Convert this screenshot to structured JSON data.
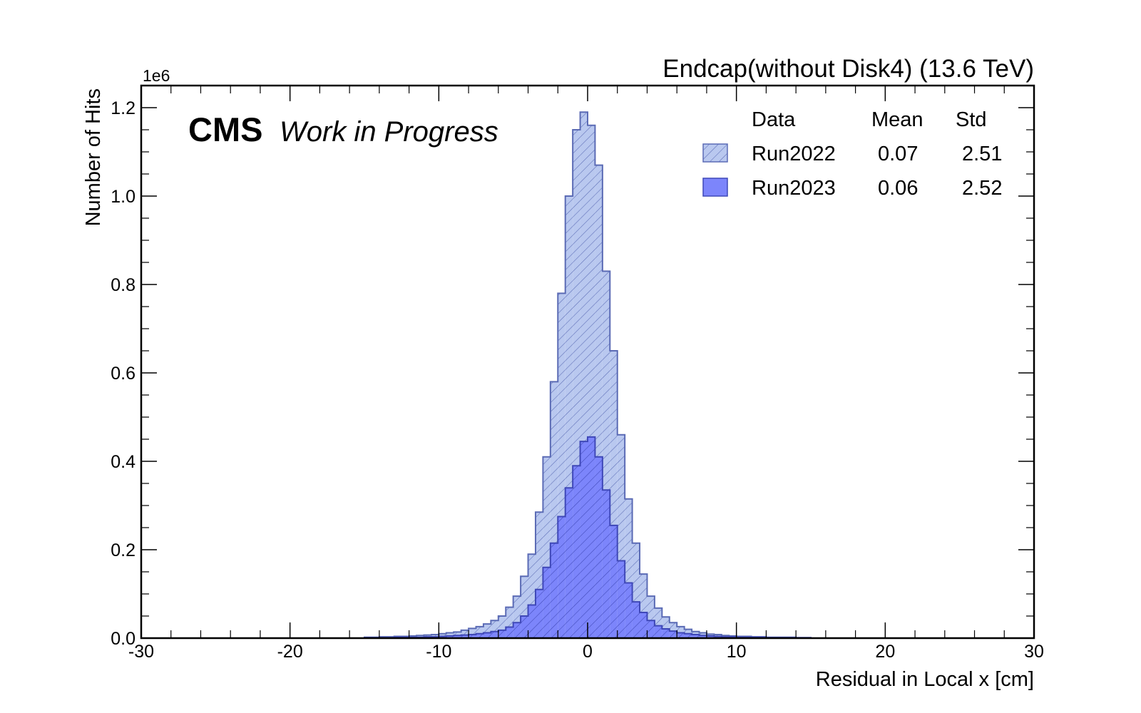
{
  "chart_data": {
    "type": "bar",
    "title": "Endcap(without Disk4) (13.6 TeV)",
    "experiment_label": "CMS",
    "experiment_extra": "Work in Progress",
    "xlabel": "Residual in Local x [cm]",
    "ylabel": "Number of Hits",
    "y_scale_label": "1e6",
    "xlim": [
      -30,
      30
    ],
    "ylim": [
      0,
      1.25
    ],
    "y_multiplier": 1000000,
    "xticks": [
      "-30",
      "-20",
      "-10",
      "0",
      "10",
      "20",
      "30"
    ],
    "yticks": [
      "0.0",
      "0.2",
      "0.4",
      "0.6",
      "0.8",
      "1.0",
      "1.2"
    ],
    "bin_edges": [
      -15.0,
      -14.5,
      -14.0,
      -13.5,
      -13.0,
      -12.5,
      -12.0,
      -11.5,
      -11.0,
      -10.5,
      -10.0,
      -9.5,
      -9.0,
      -8.5,
      -8.0,
      -7.5,
      -7.0,
      -6.5,
      -6.0,
      -5.5,
      -5.0,
      -4.5,
      -4.0,
      -3.5,
      -3.0,
      -2.5,
      -2.0,
      -1.5,
      -1.0,
      -0.5,
      0.0,
      0.5,
      1.0,
      1.5,
      2.0,
      2.5,
      3.0,
      3.5,
      4.0,
      4.5,
      5.0,
      5.5,
      6.0,
      6.5,
      7.0,
      7.5,
      8.0,
      8.5,
      9.0,
      9.5,
      10.0,
      10.5,
      11.0,
      11.5,
      12.0,
      12.5,
      13.0,
      13.5,
      14.0,
      14.5,
      15.0
    ],
    "legend": {
      "headers": [
        "Data",
        "Mean",
        "Std"
      ],
      "position": "top-right"
    },
    "series": [
      {
        "name": "Run2022",
        "mean": "0.07",
        "std": "2.51",
        "style": "hatched",
        "fill_color": "#b9c8ef",
        "edge_color": "#5b6bb5",
        "values": [
          0.002,
          0.002,
          0.003,
          0.003,
          0.004,
          0.004,
          0.005,
          0.006,
          0.007,
          0.008,
          0.01,
          0.012,
          0.014,
          0.018,
          0.022,
          0.026,
          0.032,
          0.04,
          0.05,
          0.07,
          0.095,
          0.14,
          0.19,
          0.285,
          0.41,
          0.58,
          0.78,
          1.0,
          1.15,
          1.19,
          1.16,
          1.07,
          0.83,
          0.65,
          0.46,
          0.315,
          0.215,
          0.145,
          0.095,
          0.068,
          0.048,
          0.035,
          0.026,
          0.02,
          0.015,
          0.012,
          0.009,
          0.008,
          0.006,
          0.005,
          0.004,
          0.004,
          0.003,
          0.003,
          0.002,
          0.002,
          0.002,
          0.002,
          0.001,
          0.001
        ]
      },
      {
        "name": "Run2023",
        "mean": "0.06",
        "std": "2.52",
        "style": "solid",
        "fill_color": "#7c85fb",
        "edge_color": "#3f48b8",
        "values": [
          0.001,
          0.001,
          0.001,
          0.001,
          0.002,
          0.002,
          0.002,
          0.002,
          0.003,
          0.003,
          0.004,
          0.005,
          0.006,
          0.007,
          0.008,
          0.01,
          0.012,
          0.015,
          0.018,
          0.025,
          0.035,
          0.05,
          0.075,
          0.11,
          0.16,
          0.215,
          0.275,
          0.34,
          0.39,
          0.445,
          0.455,
          0.41,
          0.335,
          0.255,
          0.175,
          0.125,
          0.082,
          0.058,
          0.04,
          0.028,
          0.021,
          0.016,
          0.012,
          0.01,
          0.008,
          0.006,
          0.005,
          0.004,
          0.003,
          0.003,
          0.002,
          0.002,
          0.002,
          0.002,
          0.001,
          0.001,
          0.001,
          0.001,
          0.001,
          0.001
        ]
      }
    ],
    "grid": false
  }
}
